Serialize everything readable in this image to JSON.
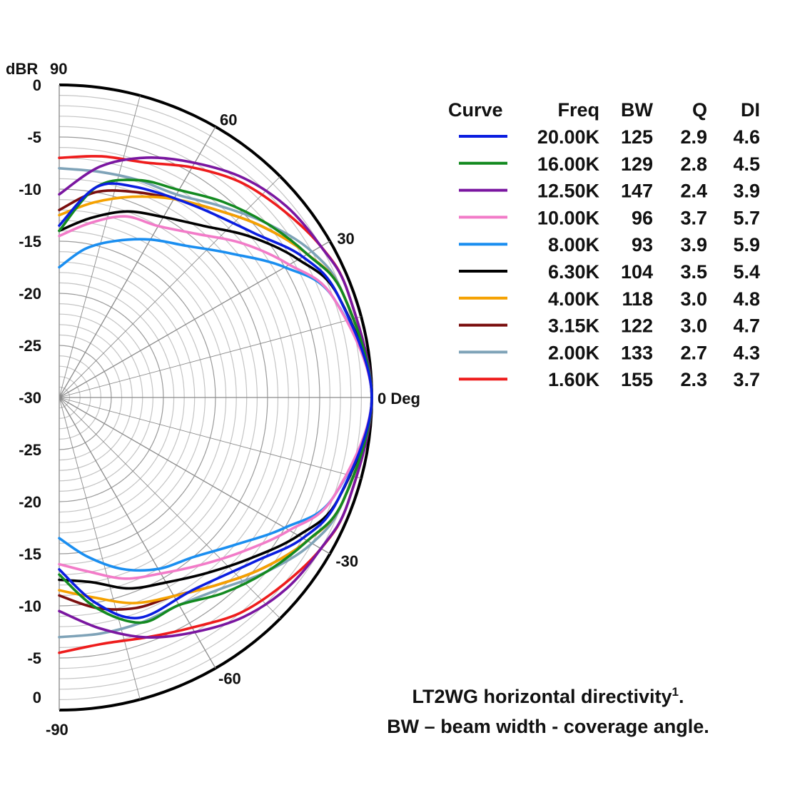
{
  "chart_data": {
    "type": "polar",
    "caption": {
      "line1": "LT2WG horizontal directivity",
      "footnote": "1",
      "line2": "BW – beam width - coverage angle."
    },
    "radial_axis": {
      "label": "dBR",
      "range": [
        -30,
        0
      ],
      "ticks_upper": [
        "0",
        "-5",
        "-10",
        "-15",
        "-20",
        "-25",
        "-30"
      ],
      "ticks_lower": [
        "-25",
        "-20",
        "-15",
        "-10",
        "-5",
        "0"
      ]
    },
    "angle_axis": {
      "range": [
        -90,
        90
      ],
      "top_label": "90",
      "bottom_label": "-90",
      "labels": [
        {
          "angle": 60,
          "text": "60"
        },
        {
          "angle": 30,
          "text": "30"
        },
        {
          "angle": 0,
          "text": "0 Deg"
        },
        {
          "angle": -30,
          "text": "-30"
        },
        {
          "angle": -60,
          "text": "-60"
        }
      ]
    },
    "legend_headers": [
      "Curve",
      "Freq",
      "BW",
      "Q",
      "DI"
    ],
    "series": [
      {
        "name": "20.00K",
        "bw": "125",
        "q": "2.9",
        "di": "4.6",
        "color": "#0a1de0",
        "points": [
          [
            0,
            0
          ],
          [
            20,
            -1.5
          ],
          [
            30,
            -3
          ],
          [
            40,
            -5.5
          ],
          [
            55,
            -7.5
          ],
          [
            70,
            -8.5
          ],
          [
            80,
            -9.5
          ],
          [
            90,
            -13.5
          ],
          [
            -20,
            -1.5
          ],
          [
            -30,
            -3
          ],
          [
            -40,
            -5.5
          ],
          [
            -55,
            -7.5
          ],
          [
            -70,
            -7.5
          ],
          [
            -80,
            -10
          ],
          [
            -90,
            -13.5
          ]
        ]
      },
      {
        "name": "16.00K",
        "bw": "129",
        "q": "2.8",
        "di": "4.5",
        "color": "#138a20",
        "points": [
          [
            0,
            0
          ],
          [
            20,
            -1
          ],
          [
            30,
            -2.5
          ],
          [
            40,
            -4
          ],
          [
            50,
            -5.5
          ],
          [
            60,
            -7
          ],
          [
            70,
            -7.8
          ],
          [
            80,
            -9.5
          ],
          [
            90,
            -14
          ],
          [
            -20,
            -1
          ],
          [
            -30,
            -2.5
          ],
          [
            -40,
            -4
          ],
          [
            -50,
            -5.5
          ],
          [
            -60,
            -7
          ],
          [
            -70,
            -7
          ],
          [
            -80,
            -9.5
          ],
          [
            -90,
            -13
          ]
        ]
      },
      {
        "name": "12.50K",
        "bw": "147",
        "q": "2.4",
        "di": "3.9",
        "color": "#7a16a0",
        "points": [
          [
            0,
            0
          ],
          [
            20,
            -0.5
          ],
          [
            30,
            -1
          ],
          [
            40,
            -1.5
          ],
          [
            50,
            -2.5
          ],
          [
            60,
            -4
          ],
          [
            70,
            -5.5
          ],
          [
            80,
            -7.5
          ],
          [
            90,
            -10.5
          ],
          [
            -20,
            -0.5
          ],
          [
            -30,
            -1
          ],
          [
            -40,
            -1.5
          ],
          [
            -50,
            -2.5
          ],
          [
            -60,
            -4
          ],
          [
            -70,
            -5.5
          ],
          [
            -80,
            -7.5
          ],
          [
            -90,
            -9.5
          ]
        ]
      },
      {
        "name": "10.00K",
        "bw": "96",
        "q": "3.7",
        "di": "5.7",
        "color": "#f27bc8",
        "points": [
          [
            0,
            0
          ],
          [
            20,
            -2
          ],
          [
            30,
            -4.5
          ],
          [
            40,
            -7
          ],
          [
            50,
            -9.5
          ],
          [
            60,
            -11
          ],
          [
            70,
            -11.5
          ],
          [
            80,
            -13
          ],
          [
            90,
            -14.5
          ],
          [
            -20,
            -2
          ],
          [
            -30,
            -4.5
          ],
          [
            -40,
            -7
          ],
          [
            -50,
            -9
          ],
          [
            -60,
            -10.5
          ],
          [
            -70,
            -11.5
          ],
          [
            -80,
            -13
          ],
          [
            -90,
            -14
          ]
        ]
      },
      {
        "name": "8.00K",
        "bw": "93",
        "q": "3.9",
        "di": "5.9",
        "color": "#1a8ef0",
        "points": [
          [
            0,
            0
          ],
          [
            20,
            -2
          ],
          [
            30,
            -5
          ],
          [
            40,
            -8.5
          ],
          [
            50,
            -11
          ],
          [
            60,
            -12.5
          ],
          [
            70,
            -14
          ],
          [
            80,
            -15.5
          ],
          [
            90,
            -17.5
          ],
          [
            -20,
            -2
          ],
          [
            -30,
            -5
          ],
          [
            -40,
            -8
          ],
          [
            -50,
            -10
          ],
          [
            -60,
            -11
          ],
          [
            -70,
            -12.5
          ],
          [
            -80,
            -14.5
          ],
          [
            -90,
            -16.5
          ]
        ]
      },
      {
        "name": "6.30K",
        "bw": "104",
        "q": "3.5",
        "di": "5.4",
        "color": "#000000",
        "points": [
          [
            0,
            0
          ],
          [
            20,
            -1.5
          ],
          [
            30,
            -3.5
          ],
          [
            40,
            -6
          ],
          [
            50,
            -8.5
          ],
          [
            60,
            -10
          ],
          [
            70,
            -11
          ],
          [
            80,
            -12.5
          ],
          [
            90,
            -14
          ],
          [
            -20,
            -1.5
          ],
          [
            -30,
            -3.5
          ],
          [
            -40,
            -6
          ],
          [
            -50,
            -8
          ],
          [
            -60,
            -9.5
          ],
          [
            -70,
            -10.5
          ],
          [
            -80,
            -12
          ],
          [
            -90,
            -12.5
          ]
        ]
      },
      {
        "name": "4.00K",
        "bw": "118",
        "q": "3.0",
        "di": "4.8",
        "color": "#f5a100",
        "points": [
          [
            0,
            0
          ],
          [
            20,
            -1
          ],
          [
            30,
            -2.5
          ],
          [
            40,
            -4.5
          ],
          [
            50,
            -6.5
          ],
          [
            60,
            -8
          ],
          [
            70,
            -9.5
          ],
          [
            80,
            -11
          ],
          [
            90,
            -12.5
          ],
          [
            -20,
            -1
          ],
          [
            -30,
            -2.5
          ],
          [
            -40,
            -4.5
          ],
          [
            -50,
            -6.5
          ],
          [
            -60,
            -8
          ],
          [
            -70,
            -9
          ],
          [
            -80,
            -10.5
          ],
          [
            -90,
            -11.5
          ]
        ]
      },
      {
        "name": "3.15K",
        "bw": "122",
        "q": "3.0",
        "di": "4.7",
        "color": "#7a0e0e",
        "points": [
          [
            0,
            0
          ],
          [
            20,
            -1
          ],
          [
            30,
            -2.5
          ],
          [
            40,
            -4.5
          ],
          [
            50,
            -6.5
          ],
          [
            60,
            -8
          ],
          [
            70,
            -9
          ],
          [
            80,
            -10
          ],
          [
            90,
            -12
          ],
          [
            -20,
            -1
          ],
          [
            -30,
            -2.5
          ],
          [
            -40,
            -4.5
          ],
          [
            -50,
            -6.5
          ],
          [
            -60,
            -8
          ],
          [
            -70,
            -8.5
          ],
          [
            -80,
            -9.5
          ],
          [
            -90,
            -11
          ]
        ]
      },
      {
        "name": "2.00K",
        "bw": "133",
        "q": "2.7",
        "di": "4.3",
        "color": "#7fa3b8",
        "points": [
          [
            0,
            0
          ],
          [
            20,
            -1
          ],
          [
            30,
            -2
          ],
          [
            40,
            -4
          ],
          [
            50,
            -6
          ],
          [
            60,
            -7.5
          ],
          [
            70,
            -7.8
          ],
          [
            80,
            -8
          ],
          [
            90,
            -8
          ],
          [
            -20,
            -1
          ],
          [
            -30,
            -2
          ],
          [
            -40,
            -4
          ],
          [
            -50,
            -6
          ],
          [
            -60,
            -7
          ],
          [
            -70,
            -7
          ],
          [
            -80,
            -7
          ],
          [
            -90,
            -7
          ]
        ]
      },
      {
        "name": "1.60K",
        "bw": "155",
        "q": "2.3",
        "di": "3.7",
        "color": "#ee1c1c",
        "points": [
          [
            0,
            0
          ],
          [
            20,
            -0.5
          ],
          [
            30,
            -1
          ],
          [
            40,
            -2
          ],
          [
            50,
            -3
          ],
          [
            60,
            -4.5
          ],
          [
            70,
            -6
          ],
          [
            80,
            -6.5
          ],
          [
            90,
            -7
          ],
          [
            -20,
            -0.5
          ],
          [
            -30,
            -1
          ],
          [
            -40,
            -2
          ],
          [
            -50,
            -3
          ],
          [
            -60,
            -4.5
          ],
          [
            -70,
            -5.5
          ],
          [
            -80,
            -6
          ],
          [
            -90,
            -5.5
          ]
        ]
      }
    ]
  }
}
